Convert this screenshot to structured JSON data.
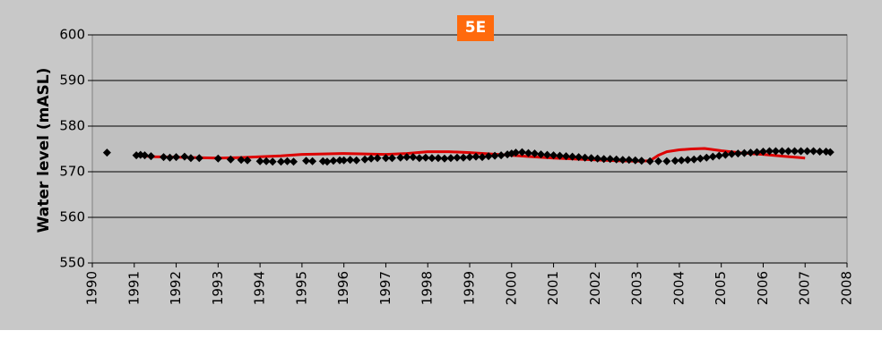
{
  "chart_data": {
    "type": "scatter",
    "title": "5E",
    "xlabel": "",
    "ylabel": "Water level  (mASL)",
    "xlim": [
      1990,
      2008
    ],
    "ylim": [
      550,
      600
    ],
    "x_ticks": [
      "1990",
      "1991",
      "1992",
      "1993",
      "1994",
      "1995",
      "1996",
      "1997",
      "1998",
      "1999",
      "2000",
      "2001",
      "2002",
      "2003",
      "2004",
      "2005",
      "2006",
      "2007",
      "2008"
    ],
    "y_ticks": [
      "550",
      "560",
      "570",
      "580",
      "590",
      "600"
    ],
    "grid": true,
    "legend": "none",
    "colors": {
      "plot_bg": "#c0c0c0",
      "frame_bg": "#c8c8c8",
      "observed": "#000000",
      "simulated": "#dd0000",
      "title_bg": "#ff6a0d",
      "title_text": "#ffffff"
    },
    "series": [
      {
        "kind": "markers",
        "points": [
          [
            1990.35,
            574.2
          ],
          [
            1991.05,
            573.6
          ],
          [
            1991.15,
            573.7
          ],
          [
            1991.25,
            573.6
          ],
          [
            1991.4,
            573.4
          ],
          [
            1991.7,
            573.2
          ],
          [
            1991.85,
            573.1
          ],
          [
            1992.0,
            573.2
          ],
          [
            1992.2,
            573.3
          ],
          [
            1992.35,
            573.0
          ],
          [
            1992.55,
            573.0
          ],
          [
            1993.0,
            572.9
          ],
          [
            1993.3,
            572.7
          ],
          [
            1993.55,
            572.6
          ],
          [
            1993.7,
            572.5
          ],
          [
            1994.0,
            572.3
          ],
          [
            1994.15,
            572.3
          ],
          [
            1994.3,
            572.2
          ],
          [
            1994.5,
            572.2
          ],
          [
            1994.65,
            572.3
          ],
          [
            1994.8,
            572.2
          ],
          [
            1995.1,
            572.4
          ],
          [
            1995.25,
            572.3
          ],
          [
            1995.5,
            572.3
          ],
          [
            1995.6,
            572.2
          ],
          [
            1995.75,
            572.4
          ],
          [
            1995.9,
            572.5
          ],
          [
            1996.0,
            572.5
          ],
          [
            1996.15,
            572.6
          ],
          [
            1996.3,
            572.5
          ],
          [
            1996.5,
            572.7
          ],
          [
            1996.65,
            572.9
          ],
          [
            1996.8,
            573.0
          ],
          [
            1997.0,
            573.0
          ],
          [
            1997.15,
            573.0
          ],
          [
            1997.35,
            573.1
          ],
          [
            1997.5,
            573.2
          ],
          [
            1997.65,
            573.2
          ],
          [
            1997.8,
            573.0
          ],
          [
            1997.95,
            573.1
          ],
          [
            1998.1,
            573.0
          ],
          [
            1998.25,
            573.0
          ],
          [
            1998.4,
            572.9
          ],
          [
            1998.55,
            573.0
          ],
          [
            1998.7,
            573.1
          ],
          [
            1998.85,
            573.1
          ],
          [
            1999.0,
            573.2
          ],
          [
            1999.15,
            573.3
          ],
          [
            1999.3,
            573.2
          ],
          [
            1999.45,
            573.4
          ],
          [
            1999.6,
            573.5
          ],
          [
            1999.75,
            573.6
          ],
          [
            1999.9,
            573.8
          ],
          [
            2000.0,
            574.0
          ],
          [
            2000.1,
            574.2
          ],
          [
            2000.25,
            574.3
          ],
          [
            2000.4,
            574.1
          ],
          [
            2000.55,
            574.0
          ],
          [
            2000.7,
            573.8
          ],
          [
            2000.85,
            573.7
          ],
          [
            2001.0,
            573.6
          ],
          [
            2001.15,
            573.5
          ],
          [
            2001.3,
            573.4
          ],
          [
            2001.45,
            573.3
          ],
          [
            2001.6,
            573.2
          ],
          [
            2001.75,
            573.1
          ],
          [
            2001.9,
            573.0
          ],
          [
            2002.05,
            572.9
          ],
          [
            2002.2,
            572.8
          ],
          [
            2002.35,
            572.8
          ],
          [
            2002.5,
            572.7
          ],
          [
            2002.65,
            572.6
          ],
          [
            2002.8,
            572.6
          ],
          [
            2002.95,
            572.5
          ],
          [
            2003.1,
            572.4
          ],
          [
            2003.3,
            572.3
          ],
          [
            2003.5,
            572.3
          ],
          [
            2003.7,
            572.3
          ],
          [
            2003.9,
            572.4
          ],
          [
            2004.05,
            572.5
          ],
          [
            2004.2,
            572.6
          ],
          [
            2004.35,
            572.7
          ],
          [
            2004.5,
            572.9
          ],
          [
            2004.65,
            573.1
          ],
          [
            2004.8,
            573.3
          ],
          [
            2004.95,
            573.5
          ],
          [
            2005.1,
            573.7
          ],
          [
            2005.25,
            573.9
          ],
          [
            2005.4,
            574.0
          ],
          [
            2005.55,
            574.1
          ],
          [
            2005.7,
            574.2
          ],
          [
            2005.85,
            574.3
          ],
          [
            2006.0,
            574.4
          ],
          [
            2006.15,
            574.5
          ],
          [
            2006.3,
            574.5
          ],
          [
            2006.45,
            574.5
          ],
          [
            2006.6,
            574.5
          ],
          [
            2006.75,
            574.5
          ],
          [
            2006.9,
            574.5
          ],
          [
            2007.05,
            574.5
          ],
          [
            2007.2,
            574.5
          ],
          [
            2007.35,
            574.4
          ],
          [
            2007.5,
            574.4
          ],
          [
            2007.6,
            574.3
          ]
        ]
      },
      {
        "kind": "line",
        "points": [
          [
            1991.0,
            573.6
          ],
          [
            1991.5,
            573.3
          ],
          [
            1992.0,
            573.2
          ],
          [
            1992.5,
            573.1
          ],
          [
            1993.0,
            573.0
          ],
          [
            1993.5,
            573.1
          ],
          [
            1994.0,
            573.3
          ],
          [
            1994.5,
            573.5
          ],
          [
            1995.0,
            573.8
          ],
          [
            1995.5,
            573.9
          ],
          [
            1996.0,
            574.0
          ],
          [
            1996.5,
            573.9
          ],
          [
            1997.0,
            573.8
          ],
          [
            1997.5,
            574.0
          ],
          [
            1998.0,
            574.4
          ],
          [
            1998.5,
            574.4
          ],
          [
            1999.0,
            574.2
          ],
          [
            1999.5,
            573.9
          ],
          [
            2000.0,
            573.6
          ],
          [
            2000.5,
            573.3
          ],
          [
            2001.0,
            573.0
          ],
          [
            2001.5,
            572.8
          ],
          [
            2002.0,
            572.6
          ],
          [
            2002.5,
            572.4
          ],
          [
            2003.0,
            572.3
          ],
          [
            2003.3,
            572.4
          ],
          [
            2003.5,
            573.6
          ],
          [
            2003.7,
            574.4
          ],
          [
            2004.0,
            574.8
          ],
          [
            2004.3,
            575.0
          ],
          [
            2004.6,
            575.1
          ],
          [
            2005.0,
            574.6
          ],
          [
            2005.5,
            574.1
          ],
          [
            2006.0,
            573.8
          ],
          [
            2006.5,
            573.4
          ],
          [
            2007.0,
            573.0
          ]
        ]
      }
    ]
  }
}
